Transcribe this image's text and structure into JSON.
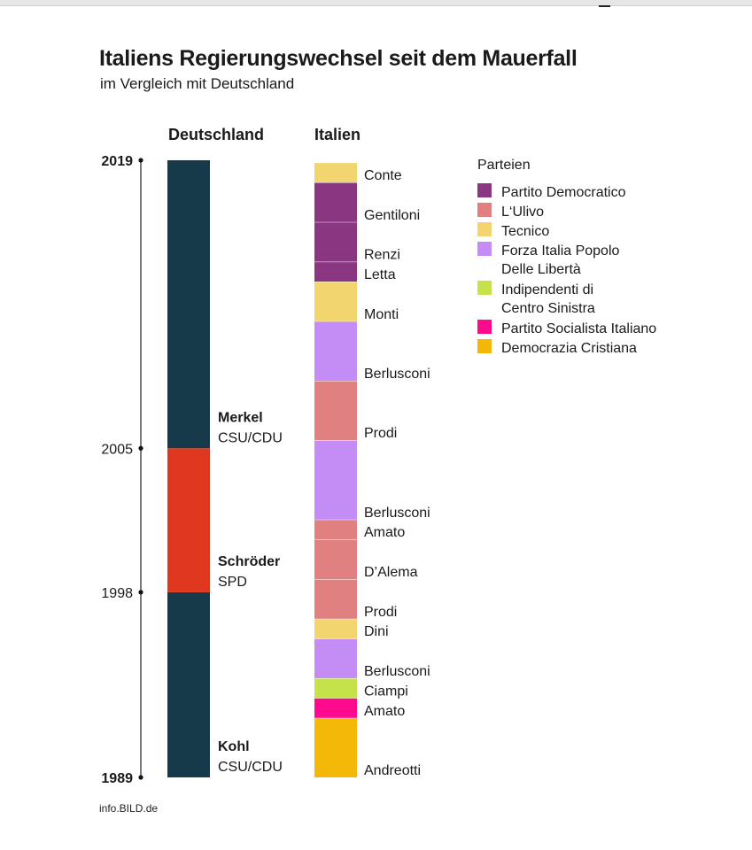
{
  "title": "Italiens Regierungswechsel seit dem Mauerfall",
  "subtitle": "im Vergleich mit Deutschland",
  "source": "info.BILD.de",
  "chart_data": {
    "type": "timeline-bar",
    "columns": [
      "Deutschland",
      "Italien"
    ],
    "y_axis": {
      "range": [
        1989,
        2019
      ],
      "ticks": [
        {
          "label": "2019",
          "value": 2019,
          "bold": true
        },
        {
          "label": "2005",
          "value": 2005,
          "bold": false
        },
        {
          "label": "1998",
          "value": 1998,
          "bold": false
        },
        {
          "label": "1989",
          "value": 1989,
          "bold": true
        }
      ]
    },
    "germany": [
      {
        "name": "Kohl",
        "party": "CSU/CDU",
        "start": 1989,
        "end": 1998,
        "color": "#173a4b"
      },
      {
        "name": "Schröder",
        "party": "SPD",
        "start": 1998,
        "end": 2005,
        "color": "#e0371f"
      },
      {
        "name": "Merkel",
        "party": "CSU/CDU",
        "start": 2005,
        "end": 2019,
        "color": "#173a4b"
      }
    ],
    "italy": [
      {
        "name": "Andreotti",
        "party": "Democrazia Cristiana",
        "start": 1989,
        "end": 1992
      },
      {
        "name": "Amato",
        "party": "Partito Socialista Italiano",
        "start": 1992,
        "end": 1993
      },
      {
        "name": "Ciampi",
        "party": "Indipendenti di Centro Sinistra",
        "start": 1993,
        "end": 1994
      },
      {
        "name": "Berlusconi",
        "party": "Forza Italia Popolo Delle Libertà",
        "start": 1994,
        "end": 1996
      },
      {
        "name": "Dini",
        "party": "Tecnico",
        "start": 1996,
        "end": 1997
      },
      {
        "name": "Prodi",
        "party": "L'Ulivo",
        "start": 1997,
        "end": 1999
      },
      {
        "name": "D’Alema",
        "party": "L'Ulivo",
        "start": 1999,
        "end": 2001
      },
      {
        "name": "Amato",
        "party": "L'Ulivo",
        "start": 2001,
        "end": 2002
      },
      {
        "name": "Berlusconi",
        "party": "Forza Italia Popolo Delle Libertà",
        "start": 2002,
        "end": 2006
      },
      {
        "name": "Prodi",
        "party": "L'Ulivo",
        "start": 2006,
        "end": 2009
      },
      {
        "name": "Berlusconi",
        "party": "Forza Italia Popolo Delle Libertà",
        "start": 2009,
        "end": 2012
      },
      {
        "name": "Monti",
        "party": "Tecnico",
        "start": 2012,
        "end": 2014
      },
      {
        "name": "Letta",
        "party": "Partito Democratico",
        "start": 2014,
        "end": 2015
      },
      {
        "name": "Renzi",
        "party": "Partito Democratico",
        "start": 2015,
        "end": 2017
      },
      {
        "name": "Gentiloni",
        "party": "Partito Democratico",
        "start": 2017,
        "end": 2019
      },
      {
        "name": "Conte",
        "party": "Tecnico",
        "start": 2019,
        "end": 2020
      }
    ],
    "legend": {
      "title": "Parteien",
      "placement": "top-right",
      "items": [
        {
          "party": "Partito Democratico",
          "lines": [
            "Partito Democratico"
          ],
          "color": "#8a3681"
        },
        {
          "party": "L'Ulivo",
          "lines": [
            "L‘Ulivo"
          ],
          "color": "#e08080"
        },
        {
          "party": "Tecnico",
          "lines": [
            "Tecnico"
          ],
          "color": "#f2d56e"
        },
        {
          "party": "Forza Italia Popolo Delle Libertà",
          "lines": [
            "Forza Italia Popolo",
            "Delle Libertà"
          ],
          "color": "#c38df5"
        },
        {
          "party": "Indipendenti di Centro Sinistra",
          "lines": [
            "Indipendenti di",
            "Centro Sinistra"
          ],
          "color": "#c6e24a"
        },
        {
          "party": "Partito Socialista Italiano",
          "lines": [
            "Partito Socialista Italiano"
          ],
          "color": "#ff0a8f"
        },
        {
          "party": "Democrazia Cristiana",
          "lines": [
            "Democrazia Cristiana"
          ],
          "color": "#f4b908"
        }
      ]
    }
  }
}
